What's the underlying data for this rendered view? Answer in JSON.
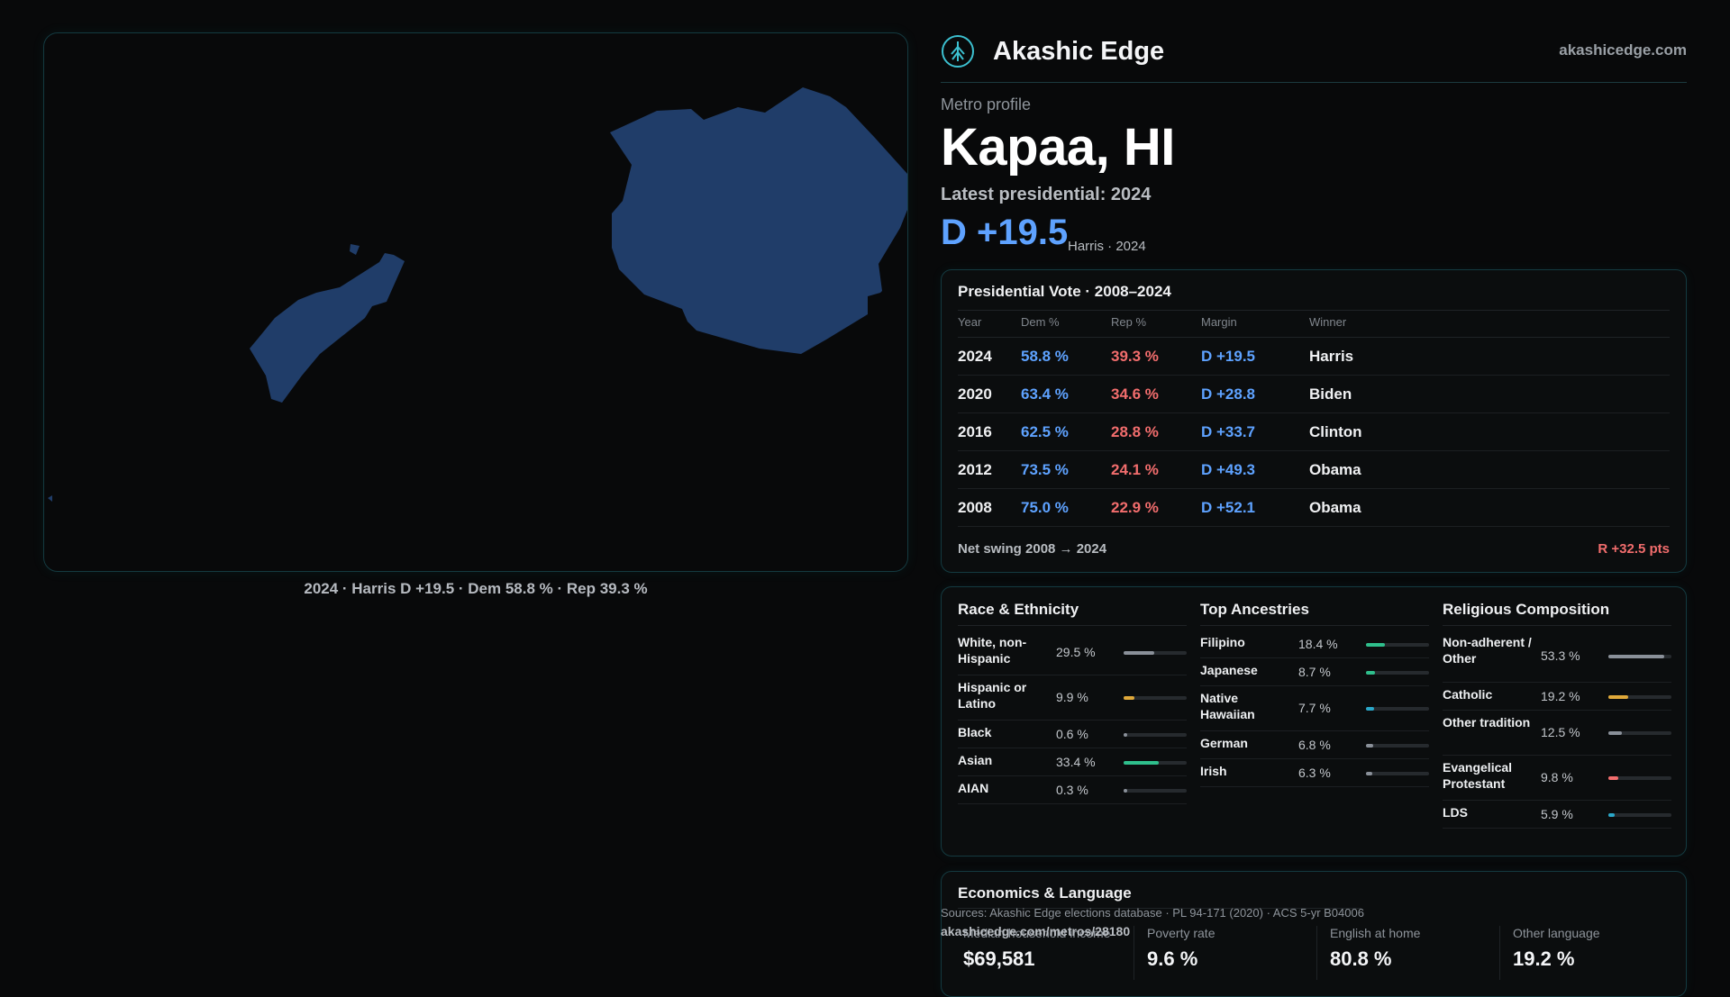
{
  "map": {
    "caption": "2024 · Harris D +19.5 · Dem 58.8 % · Rep 39.3 %",
    "fill_color": "#203d69"
  },
  "brand": {
    "name": "Akashic Edge",
    "url": "akashicedge.com",
    "icon": "tree-logo-icon"
  },
  "profile": {
    "eyebrow": "Metro profile",
    "title": "Kapaa, HI",
    "latest_label": "Latest presidential: 2024",
    "margin": "D +19.5",
    "margin_sub": "Harris · 2024"
  },
  "vote_table": {
    "title": "Presidential Vote · 2008–2024",
    "headers": [
      "Year",
      "Dem %",
      "Rep %",
      "Margin",
      "Winner"
    ],
    "rows": [
      {
        "year": "2024",
        "dem": "58.8 %",
        "rep": "39.3 %",
        "margin": "D +19.5",
        "winner": "Harris"
      },
      {
        "year": "2020",
        "dem": "63.4 %",
        "rep": "34.6 %",
        "margin": "D +28.8",
        "winner": "Biden"
      },
      {
        "year": "2016",
        "dem": "62.5 %",
        "rep": "28.8 %",
        "margin": "D +33.7",
        "winner": "Clinton"
      },
      {
        "year": "2012",
        "dem": "73.5 %",
        "rep": "24.1 %",
        "margin": "D +49.3",
        "winner": "Obama"
      },
      {
        "year": "2008",
        "dem": "75.0 %",
        "rep": "22.9 %",
        "margin": "D +52.1",
        "winner": "Obama"
      }
    ],
    "swing_label": "Net swing 2008 → 2024",
    "swing_value": "R +32.5 pts"
  },
  "race": {
    "title": "Race & Ethnicity",
    "items": [
      {
        "label": "White, non-Hispanic",
        "value": "29.5 %",
        "pct": 29.5,
        "color": "#8a9099"
      },
      {
        "label": "Hispanic or Latino",
        "value": "9.9 %",
        "pct": 9.9,
        "color": "#e0a93a"
      },
      {
        "label": "Black",
        "value": "0.6 %",
        "pct": 0.6,
        "color": "#8a9099"
      },
      {
        "label": "Asian",
        "value": "33.4 %",
        "pct": 33.4,
        "color": "#2fbf8c"
      },
      {
        "label": "AIAN",
        "value": "0.3 %",
        "pct": 0.3,
        "color": "#8a9099"
      }
    ]
  },
  "ancestries": {
    "title": "Top Ancestries",
    "items": [
      {
        "label": "Filipino",
        "value": "18.4 %",
        "pct": 18.4,
        "color": "#2fbf8c"
      },
      {
        "label": "Japanese",
        "value": "8.7 %",
        "pct": 8.7,
        "color": "#2fbf8c"
      },
      {
        "label": "Native Hawaiian",
        "value": "7.7 %",
        "pct": 7.7,
        "color": "#2aa7c9"
      },
      {
        "label": "German",
        "value": "6.8 %",
        "pct": 6.8,
        "color": "#8a9099"
      },
      {
        "label": "Irish",
        "value": "6.3 %",
        "pct": 6.3,
        "color": "#8a9099"
      }
    ]
  },
  "religion": {
    "title": "Religious Composition",
    "items": [
      {
        "label": "Non-adherent / Other",
        "value": "53.3 %",
        "pct": 53.3,
        "color": "#8a9099"
      },
      {
        "label": "Catholic",
        "value": "19.2 %",
        "pct": 19.2,
        "color": "#e0a93a"
      },
      {
        "label": "Other tradition",
        "value": "12.5 %",
        "pct": 12.5,
        "color": "#8a9099"
      },
      {
        "label": "Evangelical Protestant",
        "value": "9.8 %",
        "pct": 9.8,
        "color": "#f26d6d"
      },
      {
        "label": "LDS",
        "value": "5.9 %",
        "pct": 5.9,
        "color": "#2aa7c9"
      }
    ]
  },
  "economics": {
    "title": "Economics & Language",
    "stats": [
      {
        "label": "Median household income",
        "value": "$69,581"
      },
      {
        "label": "Poverty rate",
        "value": "9.6 %"
      },
      {
        "label": "English at home",
        "value": "80.8 %"
      },
      {
        "label": "Other language",
        "value": "19.2 %"
      }
    ]
  },
  "footer": {
    "sources": "Sources: Akashic Edge elections database · PL 94-171 (2020) · ACS 5-yr B04006",
    "page_url": "akashicedge.com/metros/28180"
  }
}
